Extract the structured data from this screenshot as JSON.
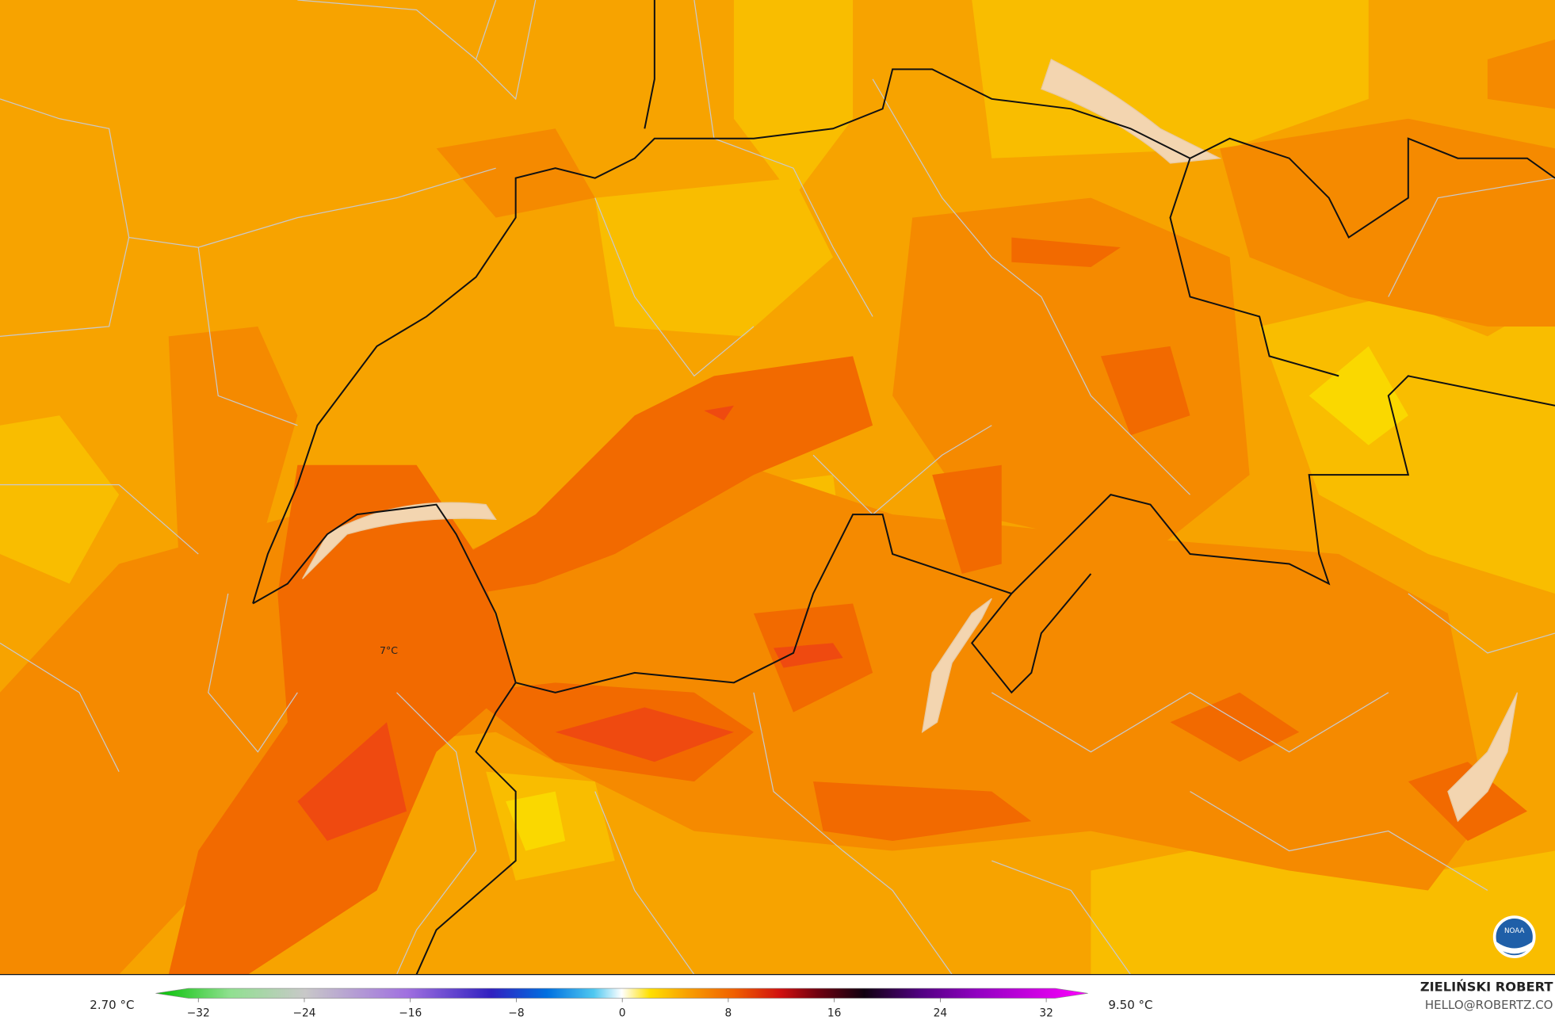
{
  "map": {
    "label": "7°C"
  },
  "legend": {
    "min_label": "2.70 °C",
    "max_label": "9.50 °C",
    "ticks": [
      {
        "value": -32,
        "label": "−32"
      },
      {
        "value": -24,
        "label": "−24"
      },
      {
        "value": -16,
        "label": "−16"
      },
      {
        "value": -8,
        "label": "−8"
      },
      0,
      8,
      16,
      24,
      32
    ]
  },
  "footer": {
    "author": "ZIELIŃSKI ROBERT",
    "email": "HELLO@ROBERTZ.CO",
    "logo": "NOAA"
  }
}
